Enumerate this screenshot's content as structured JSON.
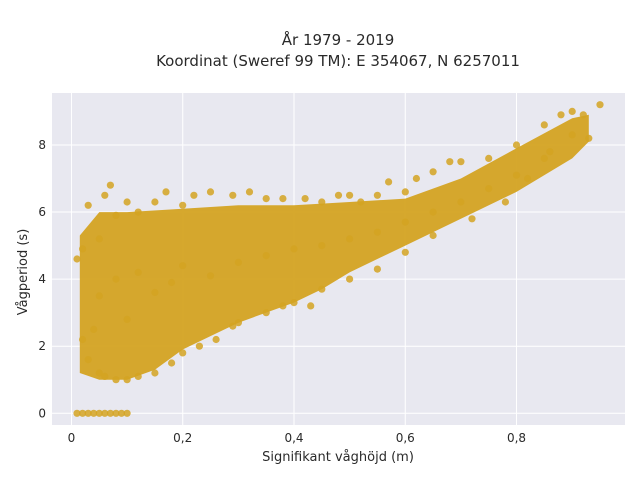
{
  "chart_data": {
    "type": "scatter",
    "title": "År 1979 - 2019",
    "subtitle": "Koordinat (Sweref 99 TM): E 354067, N 6257011",
    "xlabel": "Signifikant våghöjd (m)",
    "ylabel": "Vågperiod (s)",
    "xlim": [
      -0.035,
      0.995
    ],
    "ylim": [
      -0.35,
      9.55
    ],
    "x_ticks": [
      {
        "value": 0,
        "label": "0"
      },
      {
        "value": 0.2,
        "label": "0,2"
      },
      {
        "value": 0.4,
        "label": "0,4"
      },
      {
        "value": 0.6,
        "label": "0,6"
      },
      {
        "value": 0.8,
        "label": "0,8"
      }
    ],
    "y_ticks": [
      {
        "value": 0,
        "label": "0"
      },
      {
        "value": 2,
        "label": "2"
      },
      {
        "value": 4,
        "label": "4"
      },
      {
        "value": 6,
        "label": "6"
      },
      {
        "value": 8,
        "label": "8"
      }
    ],
    "grid": true,
    "legend": "none",
    "colors": {
      "marker": "#D4A322",
      "plot_background": "#E8E8F0",
      "grid": "#ffffff"
    },
    "series": [
      {
        "values": [
          [
            0.01,
            0.0
          ],
          [
            0.02,
            0.0
          ],
          [
            0.03,
            0.0
          ],
          [
            0.04,
            0.0
          ],
          [
            0.05,
            0.0
          ],
          [
            0.06,
            0.0
          ],
          [
            0.07,
            0.0
          ],
          [
            0.08,
            0.0
          ],
          [
            0.09,
            0.0
          ],
          [
            0.1,
            0.0
          ],
          [
            0.01,
            4.6
          ],
          [
            0.02,
            4.9
          ],
          [
            0.03,
            6.2
          ],
          [
            0.03,
            1.6
          ],
          [
            0.04,
            2.5
          ],
          [
            0.05,
            5.2
          ],
          [
            0.05,
            1.2
          ],
          [
            0.06,
            6.5
          ],
          [
            0.06,
            1.1
          ],
          [
            0.07,
            6.8
          ],
          [
            0.08,
            1.0
          ],
          [
            0.08,
            5.9
          ],
          [
            0.1,
            6.3
          ],
          [
            0.1,
            1.0
          ],
          [
            0.12,
            6.0
          ],
          [
            0.12,
            1.1
          ],
          [
            0.15,
            6.3
          ],
          [
            0.15,
            1.2
          ],
          [
            0.17,
            6.6
          ],
          [
            0.18,
            1.5
          ],
          [
            0.2,
            6.2
          ],
          [
            0.2,
            1.8
          ],
          [
            0.22,
            6.5
          ],
          [
            0.23,
            2.0
          ],
          [
            0.25,
            6.6
          ],
          [
            0.26,
            2.2
          ],
          [
            0.29,
            6.5
          ],
          [
            0.29,
            2.6
          ],
          [
            0.3,
            2.7
          ],
          [
            0.32,
            6.6
          ],
          [
            0.35,
            6.4
          ],
          [
            0.35,
            3.0
          ],
          [
            0.38,
            6.4
          ],
          [
            0.38,
            3.2
          ],
          [
            0.4,
            3.3
          ],
          [
            0.42,
            6.4
          ],
          [
            0.43,
            3.2
          ],
          [
            0.45,
            6.3
          ],
          [
            0.45,
            3.7
          ],
          [
            0.48,
            6.5
          ],
          [
            0.5,
            6.5
          ],
          [
            0.5,
            4.0
          ],
          [
            0.52,
            6.3
          ],
          [
            0.55,
            6.5
          ],
          [
            0.55,
            4.3
          ],
          [
            0.57,
            6.9
          ],
          [
            0.6,
            6.6
          ],
          [
            0.6,
            4.8
          ],
          [
            0.62,
            7.0
          ],
          [
            0.65,
            7.2
          ],
          [
            0.65,
            5.3
          ],
          [
            0.68,
            7.5
          ],
          [
            0.7,
            7.5
          ],
          [
            0.72,
            5.8
          ],
          [
            0.75,
            7.6
          ],
          [
            0.78,
            6.3
          ],
          [
            0.8,
            8.0
          ],
          [
            0.82,
            7.0
          ],
          [
            0.85,
            8.6
          ],
          [
            0.88,
            8.9
          ],
          [
            0.9,
            9.0
          ],
          [
            0.92,
            8.9
          ],
          [
            0.95,
            9.2
          ],
          [
            0.93,
            8.2
          ],
          [
            0.86,
            7.8
          ],
          [
            0.02,
            2.2
          ],
          [
            0.05,
            3.5
          ],
          [
            0.08,
            4.0
          ],
          [
            0.1,
            2.8
          ],
          [
            0.12,
            4.2
          ],
          [
            0.15,
            3.6
          ],
          [
            0.18,
            3.9
          ],
          [
            0.2,
            4.4
          ],
          [
            0.25,
            4.1
          ],
          [
            0.3,
            4.5
          ],
          [
            0.35,
            4.7
          ],
          [
            0.4,
            4.9
          ],
          [
            0.45,
            5.0
          ],
          [
            0.5,
            5.2
          ],
          [
            0.55,
            5.4
          ],
          [
            0.6,
            5.7
          ],
          [
            0.65,
            6.0
          ],
          [
            0.7,
            6.3
          ],
          [
            0.75,
            6.7
          ],
          [
            0.8,
            7.1
          ],
          [
            0.85,
            7.6
          ],
          [
            0.9,
            8.3
          ]
        ]
      }
    ]
  }
}
